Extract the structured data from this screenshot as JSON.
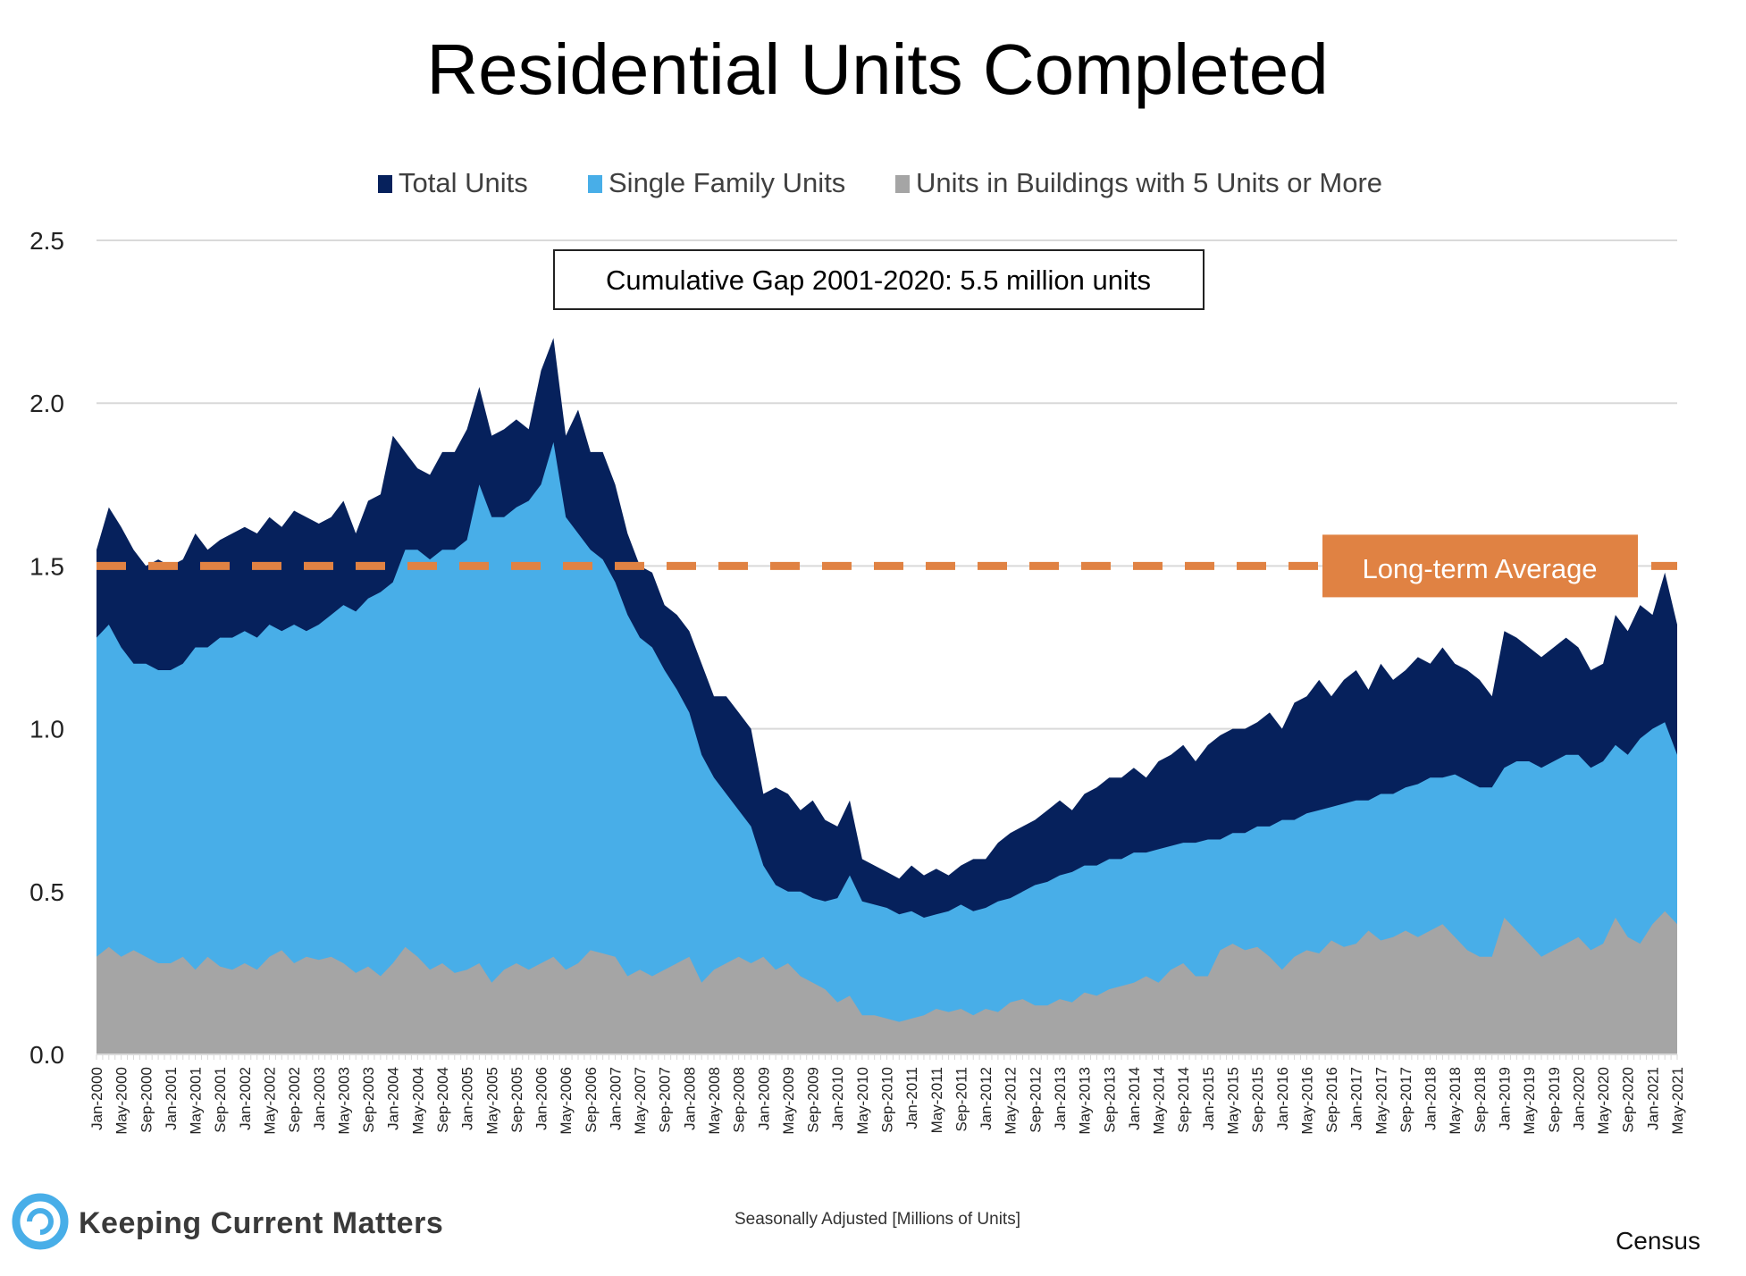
{
  "chart_data": {
    "type": "area",
    "title": "Residential Units Completed",
    "xlabel": "Seasonally Adjusted [Millions of Units]",
    "ylabel": "",
    "ylim": [
      0,
      2.5
    ],
    "yticks": [
      "0.0",
      "0.5",
      "1.0",
      "1.5",
      "2.0",
      "2.5"
    ],
    "ytick_values": [
      0,
      0.5,
      1.0,
      1.5,
      2.0,
      2.5
    ],
    "grid": true,
    "legend_position": "top-center",
    "x_start": "Jan-2000",
    "x_end": "May-2021",
    "x_sampling": "every 2 months (estimated)",
    "xtick_labels": [
      "Jan-2000",
      "May-2000",
      "Sep-2000",
      "Jan-2001",
      "May-2001",
      "Sep-2001",
      "Jan-2002",
      "May-2002",
      "Sep-2002",
      "Jan-2003",
      "May-2003",
      "Sep-2003",
      "Jan-2004",
      "May-2004",
      "Sep-2004",
      "Jan-2005",
      "May-2005",
      "Sep-2005",
      "Jan-2006",
      "May-2006",
      "Sep-2006",
      "Jan-2007",
      "May-2007",
      "Sep-2007",
      "Jan-2008",
      "May-2008",
      "Sep-2008",
      "Jan-2009",
      "May-2009",
      "Sep-2009",
      "Jan-2010",
      "May-2010",
      "Sep-2010",
      "Jan-2011",
      "May-2011",
      "Sep-2011",
      "Jan-2012",
      "May-2012",
      "Sep-2012",
      "Jan-2013",
      "May-2013",
      "Sep-2013",
      "Jan-2014",
      "May-2014",
      "Sep-2014",
      "Jan-2015",
      "May-2015",
      "Sep-2015",
      "Jan-2016",
      "May-2016",
      "Sep-2016",
      "Jan-2017",
      "May-2017",
      "Sep-2017",
      "Jan-2018",
      "May-2018",
      "Sep-2018",
      "Jan-2019",
      "May-2019",
      "Sep-2019",
      "Jan-2020",
      "May-2020",
      "Sep-2020",
      "Jan-2021",
      "May-2021"
    ],
    "series": [
      {
        "name": "Total Units",
        "color": "#06215c",
        "values": [
          1.55,
          1.68,
          1.62,
          1.55,
          1.5,
          1.52,
          1.5,
          1.52,
          1.6,
          1.55,
          1.58,
          1.6,
          1.62,
          1.6,
          1.65,
          1.62,
          1.67,
          1.65,
          1.63,
          1.65,
          1.7,
          1.6,
          1.7,
          1.72,
          1.9,
          1.85,
          1.8,
          1.78,
          1.85,
          1.85,
          1.92,
          2.05,
          1.9,
          1.92,
          1.95,
          1.92,
          2.1,
          2.2,
          1.9,
          1.98,
          1.85,
          1.85,
          1.75,
          1.6,
          1.5,
          1.48,
          1.38,
          1.35,
          1.3,
          1.2,
          1.1,
          1.1,
          1.05,
          1.0,
          0.8,
          0.82,
          0.8,
          0.75,
          0.78,
          0.72,
          0.7,
          0.78,
          0.6,
          0.58,
          0.56,
          0.54,
          0.58,
          0.55,
          0.57,
          0.55,
          0.58,
          0.6,
          0.6,
          0.65,
          0.68,
          0.7,
          0.72,
          0.75,
          0.78,
          0.75,
          0.8,
          0.82,
          0.85,
          0.85,
          0.88,
          0.85,
          0.9,
          0.92,
          0.95,
          0.9,
          0.95,
          0.98,
          1.0,
          1.0,
          1.02,
          1.05,
          1.0,
          1.08,
          1.1,
          1.15,
          1.1,
          1.15,
          1.18,
          1.12,
          1.2,
          1.15,
          1.18,
          1.22,
          1.2,
          1.25,
          1.2,
          1.18,
          1.15,
          1.1,
          1.3,
          1.28,
          1.25,
          1.22,
          1.25,
          1.28,
          1.25,
          1.18,
          1.2,
          1.35,
          1.3,
          1.38,
          1.35,
          1.48,
          1.32
        ]
      },
      {
        "name": "Single Family Units",
        "color": "#48aee8",
        "values": [
          1.28,
          1.32,
          1.25,
          1.2,
          1.2,
          1.18,
          1.18,
          1.2,
          1.25,
          1.25,
          1.28,
          1.28,
          1.3,
          1.28,
          1.32,
          1.3,
          1.32,
          1.3,
          1.32,
          1.35,
          1.38,
          1.36,
          1.4,
          1.42,
          1.45,
          1.55,
          1.55,
          1.52,
          1.55,
          1.55,
          1.58,
          1.75,
          1.65,
          1.65,
          1.68,
          1.7,
          1.75,
          1.88,
          1.65,
          1.6,
          1.55,
          1.52,
          1.45,
          1.35,
          1.28,
          1.25,
          1.18,
          1.12,
          1.05,
          0.92,
          0.85,
          0.8,
          0.75,
          0.7,
          0.58,
          0.52,
          0.5,
          0.5,
          0.48,
          0.47,
          0.48,
          0.55,
          0.47,
          0.46,
          0.45,
          0.43,
          0.44,
          0.42,
          0.43,
          0.44,
          0.46,
          0.44,
          0.45,
          0.47,
          0.48,
          0.5,
          0.52,
          0.53,
          0.55,
          0.56,
          0.58,
          0.58,
          0.6,
          0.6,
          0.62,
          0.62,
          0.63,
          0.64,
          0.65,
          0.65,
          0.66,
          0.66,
          0.68,
          0.68,
          0.7,
          0.7,
          0.72,
          0.72,
          0.74,
          0.75,
          0.76,
          0.77,
          0.78,
          0.78,
          0.8,
          0.8,
          0.82,
          0.83,
          0.85,
          0.85,
          0.86,
          0.84,
          0.82,
          0.82,
          0.88,
          0.9,
          0.9,
          0.88,
          0.9,
          0.92,
          0.92,
          0.88,
          0.9,
          0.95,
          0.92,
          0.97,
          1.0,
          1.02,
          0.92
        ]
      },
      {
        "name": "Units in Buildings with 5 Units or More",
        "color": "#a5a5a5",
        "values": [
          0.3,
          0.33,
          0.3,
          0.32,
          0.3,
          0.28,
          0.28,
          0.3,
          0.26,
          0.3,
          0.27,
          0.26,
          0.28,
          0.26,
          0.3,
          0.32,
          0.28,
          0.3,
          0.29,
          0.3,
          0.28,
          0.25,
          0.27,
          0.24,
          0.28,
          0.33,
          0.3,
          0.26,
          0.28,
          0.25,
          0.26,
          0.28,
          0.22,
          0.26,
          0.28,
          0.26,
          0.28,
          0.3,
          0.26,
          0.28,
          0.32,
          0.31,
          0.3,
          0.24,
          0.26,
          0.24,
          0.26,
          0.28,
          0.3,
          0.22,
          0.26,
          0.28,
          0.3,
          0.28,
          0.3,
          0.26,
          0.28,
          0.24,
          0.22,
          0.2,
          0.16,
          0.18,
          0.12,
          0.12,
          0.11,
          0.1,
          0.11,
          0.12,
          0.14,
          0.13,
          0.14,
          0.12,
          0.14,
          0.13,
          0.16,
          0.17,
          0.15,
          0.15,
          0.17,
          0.16,
          0.19,
          0.18,
          0.2,
          0.21,
          0.22,
          0.24,
          0.22,
          0.26,
          0.28,
          0.24,
          0.24,
          0.32,
          0.34,
          0.32,
          0.33,
          0.3,
          0.26,
          0.3,
          0.32,
          0.31,
          0.35,
          0.33,
          0.34,
          0.38,
          0.35,
          0.36,
          0.38,
          0.36,
          0.38,
          0.4,
          0.36,
          0.32,
          0.3,
          0.3,
          0.42,
          0.38,
          0.34,
          0.3,
          0.32,
          0.34,
          0.36,
          0.32,
          0.34,
          0.42,
          0.36,
          0.34,
          0.4,
          0.44,
          0.4
        ]
      }
    ],
    "reference_line": {
      "label": "Long-term Average",
      "value": 1.5,
      "color": "#e08243",
      "style": "dashed"
    },
    "annotations": [
      {
        "text": "Cumulative Gap 2001-2020: 5.5 million units"
      }
    ]
  },
  "footer": {
    "brand": "Keeping Current Matters",
    "brand_color": "#48aee8",
    "note": "Seasonally Adjusted [Millions of Units]",
    "source": "Census"
  }
}
